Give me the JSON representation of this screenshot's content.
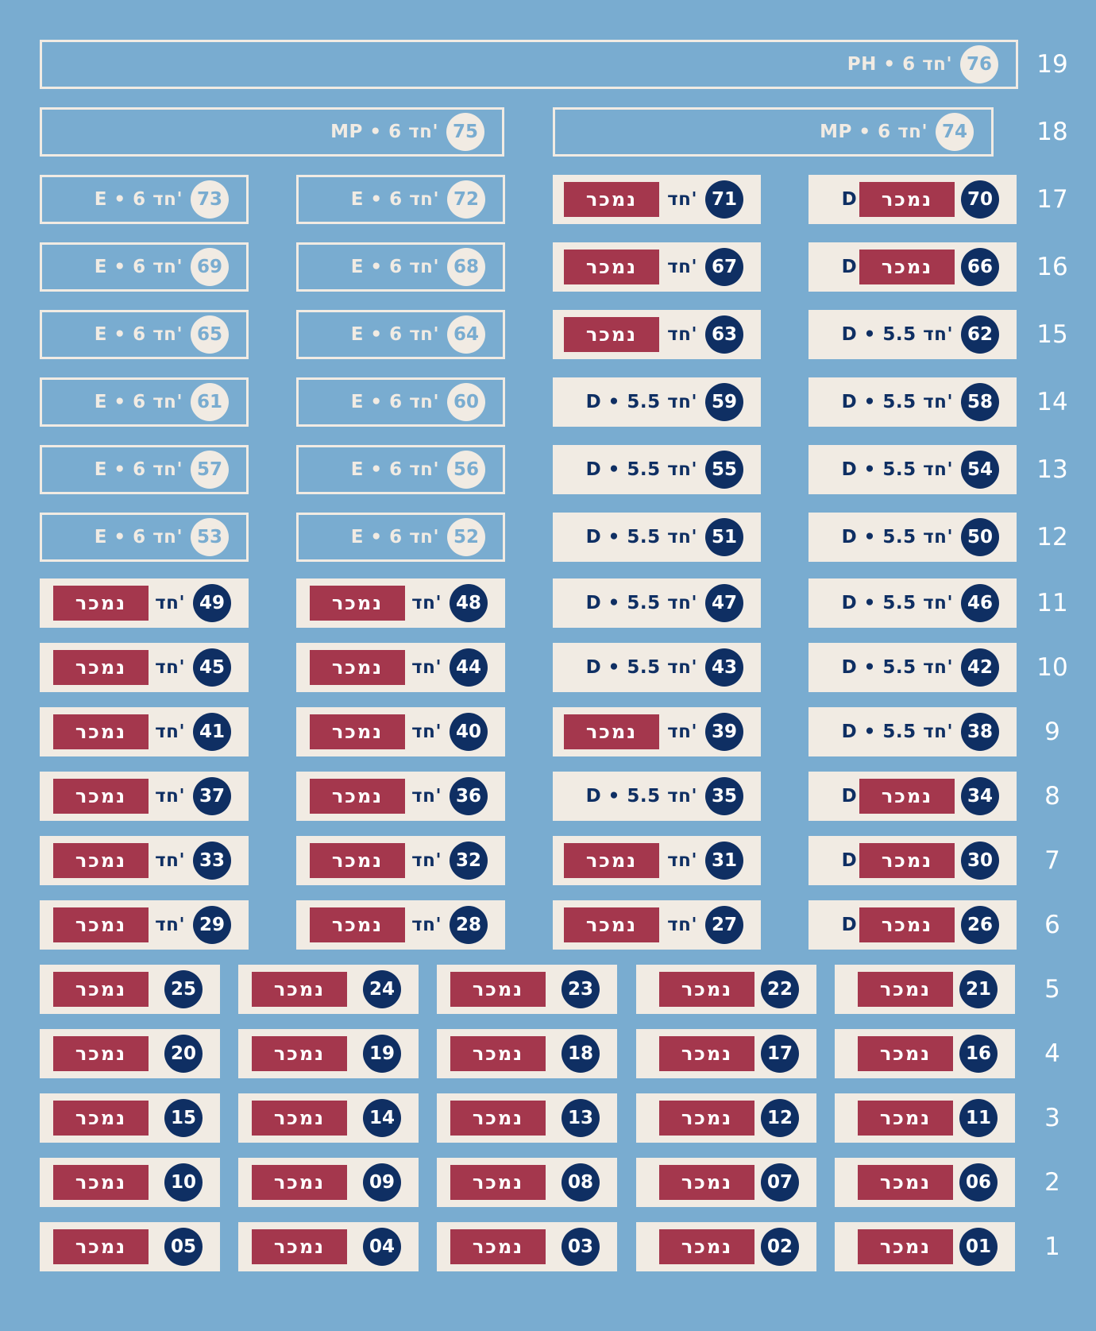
{
  "colors": {
    "background": "#79acd0",
    "cream": "#f1ebe3",
    "navy": "#0f2f63",
    "sold": "#a4374d"
  },
  "sold_label": "נמכר",
  "floors": [
    {
      "floor": "19",
      "units": [
        {
          "num": "76",
          "desc": "PH • 6 חד'",
          "status": "available"
        }
      ]
    },
    {
      "floor": "18",
      "units": [
        {
          "num": "75",
          "desc": "MP • 6 חד'",
          "status": "available"
        },
        {
          "num": "74",
          "desc": "MP • 6 חד'",
          "status": "available"
        }
      ]
    },
    {
      "floor": "17",
      "units": [
        {
          "num": "73",
          "desc": "E • 6 חד'",
          "status": "available"
        },
        {
          "num": "72",
          "desc": "E • 6 חד'",
          "status": "available"
        },
        {
          "num": "71",
          "desc": "D • 5.5 חד'",
          "status": "sold"
        },
        {
          "num": "70",
          "desc": "D • 5.5 חד'",
          "status": "sold"
        }
      ]
    },
    {
      "floor": "16",
      "units": [
        {
          "num": "69",
          "desc": "E • 6 חד'",
          "status": "available"
        },
        {
          "num": "68",
          "desc": "E • 6 חד'",
          "status": "available"
        },
        {
          "num": "67",
          "desc": "D • 5.5 חד'",
          "status": "sold"
        },
        {
          "num": "66",
          "desc": "D • 5.5 חד'",
          "status": "sold"
        }
      ]
    },
    {
      "floor": "15",
      "units": [
        {
          "num": "65",
          "desc": "E • 6 חד'",
          "status": "available"
        },
        {
          "num": "64",
          "desc": "E • 6 חד'",
          "status": "available"
        },
        {
          "num": "63",
          "desc": "D • 5.5 חד'",
          "status": "sold"
        },
        {
          "num": "62",
          "desc": "D • 5.5 חד'",
          "status": "occupied"
        }
      ]
    },
    {
      "floor": "14",
      "units": [
        {
          "num": "61",
          "desc": "E • 6 חד'",
          "status": "available"
        },
        {
          "num": "60",
          "desc": "E • 6 חד'",
          "status": "available"
        },
        {
          "num": "59",
          "desc": "D • 5.5 חד'",
          "status": "occupied"
        },
        {
          "num": "58",
          "desc": "D • 5.5 חד'",
          "status": "occupied"
        }
      ]
    },
    {
      "floor": "13",
      "units": [
        {
          "num": "57",
          "desc": "E • 6 חד'",
          "status": "available"
        },
        {
          "num": "56",
          "desc": "E • 6 חד'",
          "status": "available"
        },
        {
          "num": "55",
          "desc": "D • 5.5 חד'",
          "status": "occupied"
        },
        {
          "num": "54",
          "desc": "D • 5.5 חד'",
          "status": "occupied"
        }
      ]
    },
    {
      "floor": "12",
      "units": [
        {
          "num": "53",
          "desc": "E • 6 חד'",
          "status": "available"
        },
        {
          "num": "52",
          "desc": "E • 6 חד'",
          "status": "available"
        },
        {
          "num": "51",
          "desc": "D • 5.5 חד'",
          "status": "occupied"
        },
        {
          "num": "50",
          "desc": "D • 5.5 חד'",
          "status": "occupied"
        }
      ]
    },
    {
      "floor": "11",
      "units": [
        {
          "num": "49",
          "desc": "E • 6 חד'",
          "status": "sold"
        },
        {
          "num": "48",
          "desc": "E • 6 חד'",
          "status": "sold"
        },
        {
          "num": "47",
          "desc": "D • 5.5 חד'",
          "status": "occupied"
        },
        {
          "num": "46",
          "desc": "D • 5.5 חד'",
          "status": "occupied"
        }
      ]
    },
    {
      "floor": "10",
      "units": [
        {
          "num": "45",
          "desc": "E • 6 חד'",
          "status": "sold"
        },
        {
          "num": "44",
          "desc": "E • 6 חד'",
          "status": "sold"
        },
        {
          "num": "43",
          "desc": "D • 5.5 חד'",
          "status": "occupied"
        },
        {
          "num": "42",
          "desc": "D • 5.5 חד'",
          "status": "occupied"
        }
      ]
    },
    {
      "floor": "9",
      "units": [
        {
          "num": "41",
          "desc": "E • 6 חד'",
          "status": "sold"
        },
        {
          "num": "40",
          "desc": "E • 6 חד'",
          "status": "sold"
        },
        {
          "num": "39",
          "desc": "D • 5.5 חד'",
          "status": "sold"
        },
        {
          "num": "38",
          "desc": "D • 5.5 חד'",
          "status": "occupied"
        }
      ]
    },
    {
      "floor": "8",
      "units": [
        {
          "num": "37",
          "desc": "E • 6 חד'",
          "status": "sold"
        },
        {
          "num": "36",
          "desc": "E • 6 חד'",
          "status": "sold"
        },
        {
          "num": "35",
          "desc": "D • 5.5 חד'",
          "status": "occupied"
        },
        {
          "num": "34",
          "desc": "D • 5.5 חד'",
          "status": "sold"
        }
      ]
    },
    {
      "floor": "7",
      "units": [
        {
          "num": "33",
          "desc": "E • 6 חד'",
          "status": "sold"
        },
        {
          "num": "32",
          "desc": "E • 6 חד'",
          "status": "sold"
        },
        {
          "num": "31",
          "desc": "D • 5.5 חד'",
          "status": "sold"
        },
        {
          "num": "30",
          "desc": "D • 5.5 חד'",
          "status": "sold"
        }
      ]
    },
    {
      "floor": "6",
      "units": [
        {
          "num": "29",
          "desc": "E • 6 חד'",
          "status": "sold"
        },
        {
          "num": "28",
          "desc": "E • 6 חד'",
          "status": "sold"
        },
        {
          "num": "27",
          "desc": "D • 5.5 חד'",
          "status": "sold"
        },
        {
          "num": "26",
          "desc": "D • 5.5 חד'",
          "status": "sold"
        }
      ]
    },
    {
      "floor": "5",
      "units": [
        {
          "num": "25",
          "desc": "",
          "status": "sold"
        },
        {
          "num": "24",
          "desc": "",
          "status": "sold"
        },
        {
          "num": "23",
          "desc": "",
          "status": "sold"
        },
        {
          "num": "22",
          "desc": "",
          "status": "sold"
        },
        {
          "num": "21",
          "desc": "",
          "status": "sold"
        }
      ]
    },
    {
      "floor": "4",
      "units": [
        {
          "num": "20",
          "desc": "",
          "status": "sold"
        },
        {
          "num": "19",
          "desc": "",
          "status": "sold"
        },
        {
          "num": "18",
          "desc": "",
          "status": "sold"
        },
        {
          "num": "17",
          "desc": "",
          "status": "sold"
        },
        {
          "num": "16",
          "desc": "",
          "status": "sold"
        }
      ]
    },
    {
      "floor": "3",
      "units": [
        {
          "num": "15",
          "desc": "",
          "status": "sold"
        },
        {
          "num": "14",
          "desc": "",
          "status": "sold"
        },
        {
          "num": "13",
          "desc": "",
          "status": "sold"
        },
        {
          "num": "12",
          "desc": "",
          "status": "sold"
        },
        {
          "num": "11",
          "desc": "",
          "status": "sold"
        }
      ]
    },
    {
      "floor": "2",
      "units": [
        {
          "num": "10",
          "desc": "",
          "status": "sold"
        },
        {
          "num": "09",
          "desc": "",
          "status": "sold"
        },
        {
          "num": "08",
          "desc": "",
          "status": "sold"
        },
        {
          "num": "07",
          "desc": "",
          "status": "sold"
        },
        {
          "num": "06",
          "desc": "",
          "status": "sold"
        }
      ]
    },
    {
      "floor": "1",
      "units": [
        {
          "num": "05",
          "desc": "",
          "status": "sold"
        },
        {
          "num": "04",
          "desc": "",
          "status": "sold"
        },
        {
          "num": "03",
          "desc": "",
          "status": "sold"
        },
        {
          "num": "02",
          "desc": "",
          "status": "sold"
        },
        {
          "num": "01",
          "desc": "",
          "status": "sold"
        }
      ]
    }
  ]
}
